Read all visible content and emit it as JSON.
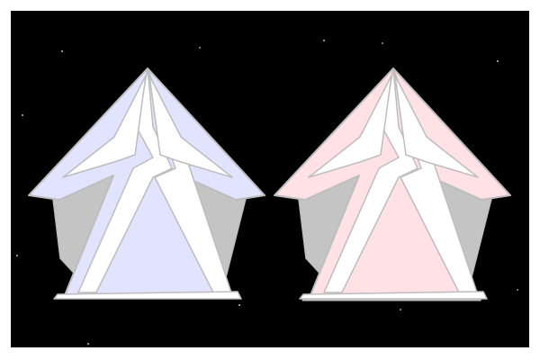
{
  "scene": {
    "background_color": "#000000",
    "frame_color": "#ffffff",
    "star_color": "#ffffff"
  },
  "ships": [
    {
      "name": "ship-blue",
      "hull_color": "#e1e3ff",
      "accent_color": "#ffffff",
      "shadow_color": "#c4c4c4",
      "outline_color": "#bdbdbd"
    },
    {
      "name": "ship-red",
      "hull_color": "#ffe1e6",
      "accent_color": "#ffffff",
      "shadow_color": "#c4c4c4",
      "outline_color": "#bdbdbd"
    }
  ]
}
